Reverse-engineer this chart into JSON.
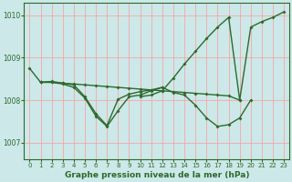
{
  "title": "Graphe pression niveau de la mer (hPa)",
  "background_color": "#cce8e8",
  "grid_color": "#ff9999",
  "line_color": "#2d6a2d",
  "ylim": [
    1006.6,
    1010.3
  ],
  "xlim": [
    -0.5,
    23.5
  ],
  "yticks": [
    1007,
    1008,
    1009,
    1010
  ],
  "xtick_labels": [
    "0",
    "1",
    "2",
    "3",
    "4",
    "5",
    "6",
    "7",
    "8",
    "9",
    "10",
    "11",
    "12",
    "13",
    "14",
    "15",
    "16",
    "17",
    "18",
    "19",
    "20",
    "21",
    "22",
    "23"
  ],
  "s1_x": [
    0,
    1,
    2,
    3,
    4,
    5,
    6,
    7,
    8,
    9,
    10,
    11,
    12,
    13,
    14,
    15,
    16,
    17,
    18,
    19
  ],
  "s1_y": [
    1008.75,
    1008.42,
    1008.42,
    1008.4,
    1008.38,
    1008.36,
    1008.34,
    1008.32,
    1008.3,
    1008.28,
    1008.26,
    1008.24,
    1008.22,
    1008.2,
    1008.18,
    1008.16,
    1008.14,
    1008.12,
    1008.1,
    1008.0
  ],
  "s2_x": [
    1,
    2,
    3,
    4,
    5,
    6,
    7,
    8,
    9,
    10,
    11,
    12,
    13,
    14,
    15,
    16,
    17,
    18,
    19,
    20
  ],
  "s2_y": [
    1008.42,
    1008.42,
    1008.38,
    1008.3,
    1008.05,
    1007.62,
    1007.38,
    1007.75,
    1008.08,
    1008.12,
    1008.22,
    1008.3,
    1008.18,
    1008.12,
    1007.88,
    1007.58,
    1007.38,
    1007.42,
    1007.58,
    1008.0
  ],
  "s3_x": [
    1,
    2,
    3,
    4,
    5,
    6,
    7,
    8,
    9,
    10,
    11,
    12
  ],
  "s3_y": [
    1008.42,
    1008.44,
    1008.4,
    1008.36,
    1008.08,
    1007.68,
    1007.4,
    1008.02,
    1008.14,
    1008.2,
    1008.24,
    1008.3
  ],
  "s4_x": [
    10,
    11,
    12,
    13,
    14,
    15,
    16,
    17,
    18,
    19,
    20,
    21,
    22,
    23
  ],
  "s4_y": [
    1008.08,
    1008.12,
    1008.22,
    1008.52,
    1008.85,
    1009.15,
    1009.45,
    1009.72,
    1009.95,
    1008.0,
    1009.72,
    1009.85,
    1009.95,
    1010.08
  ],
  "line_width": 1.0,
  "marker_size": 2.0,
  "title_fontsize": 6.5,
  "tick_fontsize": 5.5
}
